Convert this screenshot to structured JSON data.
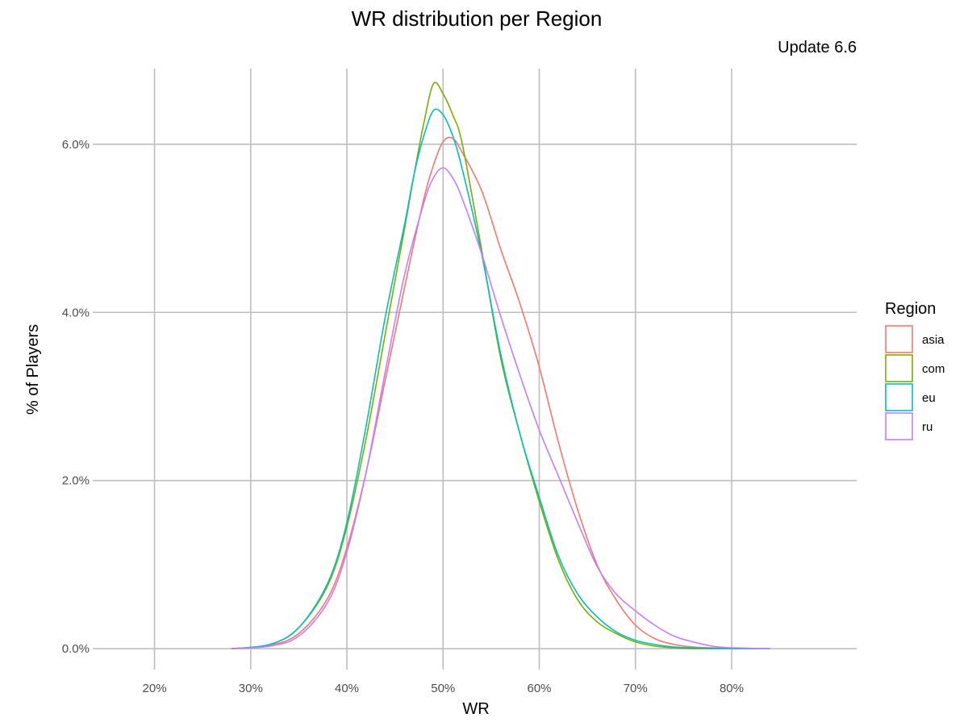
{
  "chart_data": {
    "type": "line",
    "title": "WR distribution per Region",
    "subtitle": "Update 6.6",
    "xlabel": "WR",
    "ylabel": "% of Players",
    "xlim": [
      0.14,
      0.93
    ],
    "ylim": [
      -0.002,
      0.069
    ],
    "x_ticks": [
      0.2,
      0.3,
      0.4,
      0.5,
      0.6,
      0.7,
      0.8
    ],
    "x_tick_labels": [
      "20%",
      "30%",
      "40%",
      "50%",
      "60%",
      "70%",
      "80%"
    ],
    "y_ticks": [
      0.0,
      0.02,
      0.04,
      0.06
    ],
    "y_tick_labels": [
      "0.0%",
      "2.0%",
      "4.0%",
      "6.0%"
    ],
    "grid": true,
    "legend": {
      "title": "Region",
      "position": "right"
    },
    "series": [
      {
        "name": "asia",
        "color": "#F8766D",
        "x": [
          0.28,
          0.32,
          0.35,
          0.38,
          0.4,
          0.42,
          0.44,
          0.46,
          0.48,
          0.49,
          0.5,
          0.51,
          0.52,
          0.54,
          0.56,
          0.58,
          0.6,
          0.62,
          0.64,
          0.66,
          0.68,
          0.7,
          0.72,
          0.74,
          0.76,
          0.78,
          0.8,
          0.84
        ],
        "y": [
          0.0,
          0.0004,
          0.0018,
          0.006,
          0.012,
          0.021,
          0.032,
          0.043,
          0.0535,
          0.0575,
          0.0603,
          0.0607,
          0.059,
          0.0545,
          0.0475,
          0.041,
          0.0335,
          0.0245,
          0.0165,
          0.01,
          0.0058,
          0.0028,
          0.0012,
          0.0005,
          0.0002,
          0.0001,
          0.0,
          0.0
        ]
      },
      {
        "name": "com",
        "color": "#7CAE00",
        "x": [
          0.28,
          0.32,
          0.35,
          0.38,
          0.4,
          0.42,
          0.44,
          0.46,
          0.47,
          0.48,
          0.49,
          0.5,
          0.51,
          0.52,
          0.54,
          0.56,
          0.58,
          0.6,
          0.62,
          0.64,
          0.66,
          0.68,
          0.7,
          0.72,
          0.74,
          0.76,
          0.8,
          0.84
        ],
        "y": [
          0.0,
          0.0005,
          0.0025,
          0.0075,
          0.0145,
          0.025,
          0.0375,
          0.05,
          0.0565,
          0.0625,
          0.0672,
          0.066,
          0.0635,
          0.06,
          0.0475,
          0.0345,
          0.0255,
          0.0175,
          0.0105,
          0.0058,
          0.0032,
          0.0018,
          0.0008,
          0.0003,
          0.0001,
          0.0,
          0.0,
          0.0
        ]
      },
      {
        "name": "eu",
        "color": "#00BFC4",
        "x": [
          0.28,
          0.32,
          0.35,
          0.38,
          0.4,
          0.42,
          0.44,
          0.46,
          0.47,
          0.48,
          0.49,
          0.5,
          0.51,
          0.52,
          0.54,
          0.56,
          0.58,
          0.6,
          0.62,
          0.64,
          0.66,
          0.68,
          0.7,
          0.72,
          0.74,
          0.76,
          0.8,
          0.84
        ],
        "y": [
          0.0,
          0.0005,
          0.0025,
          0.0078,
          0.015,
          0.0265,
          0.0395,
          0.0505,
          0.0565,
          0.061,
          0.064,
          0.0635,
          0.061,
          0.057,
          0.047,
          0.035,
          0.0255,
          0.018,
          0.011,
          0.0065,
          0.0038,
          0.002,
          0.001,
          0.0005,
          0.0002,
          0.0001,
          0.0,
          0.0
        ]
      },
      {
        "name": "ru",
        "color": "#C77CFF",
        "x": [
          0.28,
          0.32,
          0.35,
          0.38,
          0.4,
          0.42,
          0.44,
          0.46,
          0.48,
          0.49,
          0.5,
          0.51,
          0.52,
          0.54,
          0.56,
          0.58,
          0.6,
          0.62,
          0.64,
          0.66,
          0.68,
          0.7,
          0.72,
          0.74,
          0.76,
          0.78,
          0.8,
          0.84
        ],
        "y": [
          0.0,
          0.0003,
          0.0015,
          0.0055,
          0.0115,
          0.021,
          0.033,
          0.0445,
          0.053,
          0.056,
          0.0572,
          0.056,
          0.0535,
          0.047,
          0.0395,
          0.0325,
          0.026,
          0.0205,
          0.015,
          0.0098,
          0.0065,
          0.0045,
          0.0028,
          0.0015,
          0.0008,
          0.0003,
          0.0001,
          0.0
        ]
      }
    ]
  }
}
